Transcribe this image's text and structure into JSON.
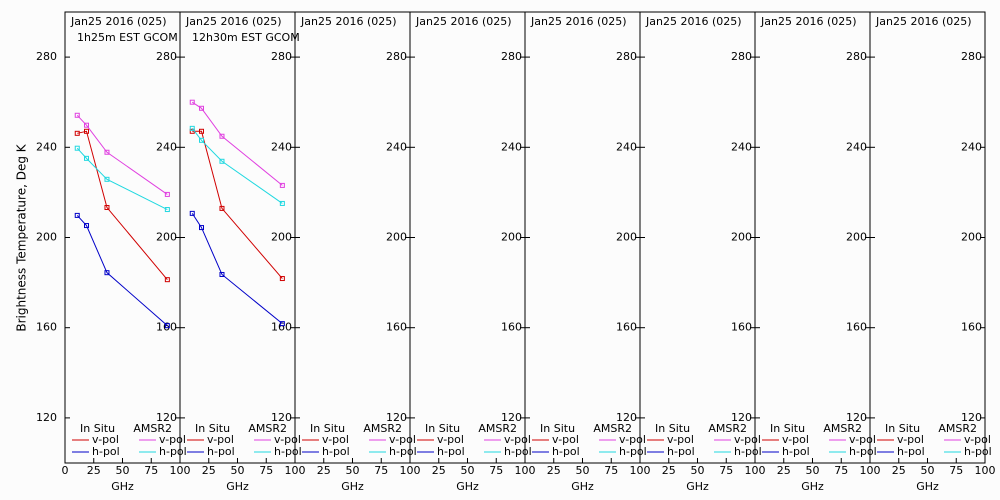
{
  "chart_data": {
    "type": "line",
    "y_label": "Brightness Temperature, Deg K",
    "x_label": "GHz",
    "xlim": [
      0,
      100
    ],
    "xticks": [
      0,
      25,
      50,
      75,
      100
    ],
    "ylim": [
      100,
      300
    ],
    "yticks": [
      120,
      160,
      200,
      240,
      280
    ],
    "legend": {
      "groups": [
        {
          "name": "In Situ",
          "entries": [
            {
              "name": "v-pol",
              "color": "#d00000"
            },
            {
              "name": "h-pol",
              "color": "#0000c8"
            }
          ]
        },
        {
          "name": "AMSR2",
          "entries": [
            {
              "name": "v-pol",
              "color": "#e040e0"
            },
            {
              "name": "h-pol",
              "color": "#20d8e0"
            }
          ]
        }
      ]
    },
    "panels": [
      {
        "title": "Jan25 2016 (025)",
        "subtitle": "1h25m EST GCOM",
        "x": [
          10.65,
          18.7,
          36.5,
          89
        ],
        "series": [
          {
            "values": [
              246.2,
              247.1,
              213.3,
              181.3
            ]
          },
          {
            "values": [
              209.8,
              205.3,
              184.4,
              160.9
            ]
          },
          {
            "values": [
              254.2,
              249.8,
              237.8,
              219.1
            ]
          },
          {
            "values": [
              239.6,
              235.1,
              225.8,
              212.4
            ]
          }
        ]
      },
      {
        "title": "Jan25 2016 (025)",
        "subtitle": "12h30m EST GCOM",
        "x": [
          10.65,
          18.7,
          36.5,
          89
        ],
        "series": [
          {
            "values": [
              247.1,
              247.1,
              212.9,
              181.8
            ]
          },
          {
            "values": [
              210.7,
              204.4,
              183.6,
              161.8
            ]
          },
          {
            "values": [
              260.0,
              257.3,
              244.9,
              223.1
            ]
          },
          {
            "values": [
              248.4,
              243.1,
              233.8,
              215.1
            ]
          }
        ]
      },
      {
        "title": "Jan25 2016 (025)"
      },
      {
        "title": "Jan25 2016 (025)"
      },
      {
        "title": "Jan25 2016 (025)"
      },
      {
        "title": "Jan25 2016 (025)"
      },
      {
        "title": "Jan25 2016 (025)"
      },
      {
        "title": "Jan25 2016 (025)"
      }
    ]
  }
}
